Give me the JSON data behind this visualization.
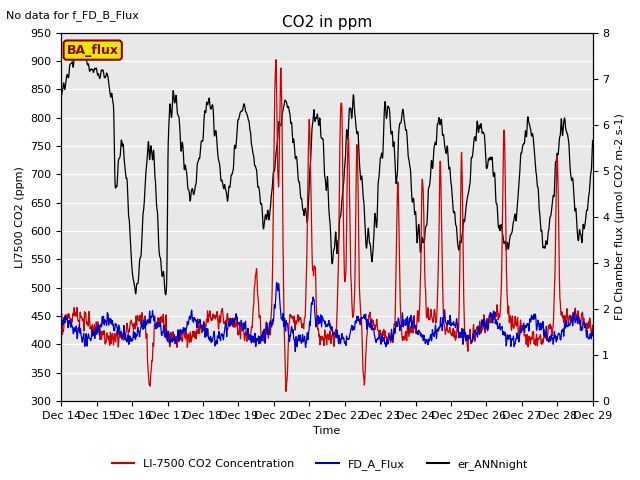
{
  "title": "CO2 in ppm",
  "top_left_text": "No data for f_FD_B_Flux",
  "ylabel_left": "LI7500 CO2 (ppm)",
  "ylabel_right": "FD Chamber flux (μmol CO2 m-2 s-1)",
  "xlabel": "Time",
  "ylim_left": [
    300,
    950
  ],
  "ylim_right": [
    0.0,
    8.0
  ],
  "yticks_left": [
    300,
    350,
    400,
    450,
    500,
    550,
    600,
    650,
    700,
    750,
    800,
    850,
    900,
    950
  ],
  "yticks_right": [
    0.0,
    1.0,
    2.0,
    3.0,
    4.0,
    5.0,
    6.0,
    7.0,
    8.0
  ],
  "xtick_labels": [
    "Dec 14",
    "Dec 15",
    "Dec 16",
    "Dec 17",
    "Dec 18",
    "Dec 19",
    "Dec 20",
    "Dec 21",
    "Dec 22",
    "Dec 23",
    "Dec 24",
    "Dec 25",
    "Dec 26",
    "Dec 27",
    "Dec 28",
    "Dec 29"
  ],
  "color_red": "#cc0000",
  "color_blue": "#0000cc",
  "color_black": "#000000",
  "bg_color": "#e8e8e8",
  "legend_box_facecolor": "#e8e800",
  "legend_box_edgecolor": "#8B0000",
  "legend_box_text": "BA_flux",
  "legend_entries": [
    "LI-7500 CO2 Concentration",
    "FD_A_Flux",
    "er_ANNnight"
  ],
  "title_fontsize": 11,
  "label_fontsize": 8,
  "tick_fontsize": 8
}
